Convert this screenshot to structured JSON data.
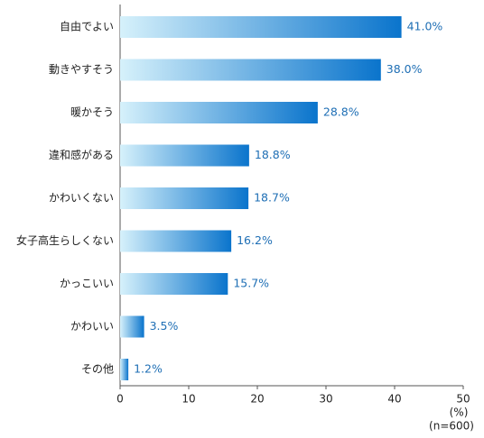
{
  "chart_data": {
    "type": "bar",
    "orientation": "horizontal",
    "categories": [
      "自由でよい",
      "動きやすそう",
      "暖かそう",
      "違和感がある",
      "かわいくない",
      "女子高生らしくない",
      "かっこいい",
      "かわいい",
      "その他"
    ],
    "values": [
      41.0,
      38.0,
      28.8,
      18.8,
      18.7,
      16.2,
      15.7,
      3.5,
      1.2
    ],
    "value_labels": [
      "41.0%",
      "38.0%",
      "28.8%",
      "18.8%",
      "18.7%",
      "16.2%",
      "15.7%",
      "3.5%",
      "1.2%"
    ],
    "color": "#0a74cc",
    "xlim": [
      0,
      50
    ],
    "xticks": [
      0,
      10,
      20,
      30,
      40,
      50
    ],
    "x_unit": "(%)",
    "note": "(n=600)"
  }
}
